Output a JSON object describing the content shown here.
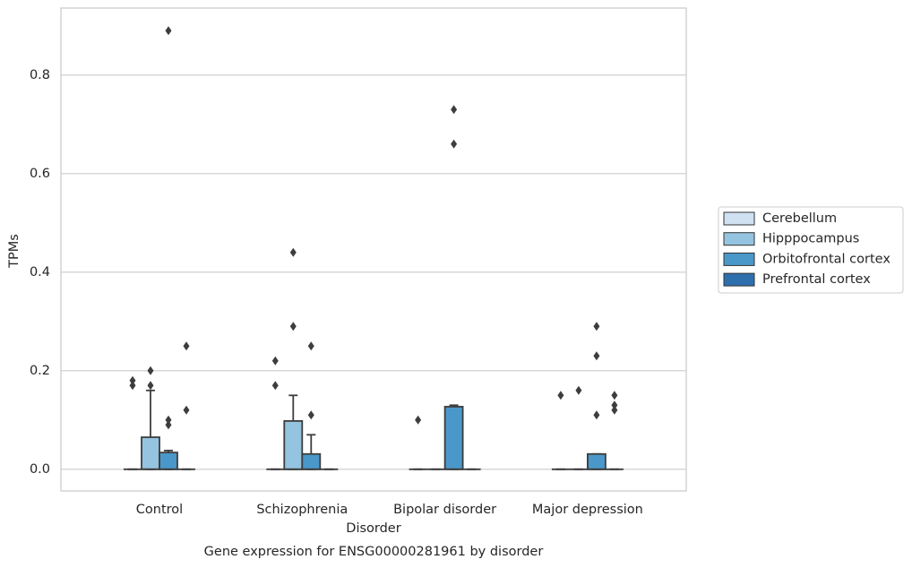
{
  "chart_data": {
    "type": "box",
    "title": "Gene expression for ENSG00000281961 by disorder",
    "xlabel": "Disorder",
    "ylabel": "TPMs",
    "categories": [
      "Control",
      "Schizophrenia",
      "Bipolar disorder",
      "Major depression"
    ],
    "ylim": [
      -0.044,
      0.936
    ],
    "yticks": [
      {
        "value": 0,
        "label": "0.0"
      },
      0.2,
      0.4,
      0.6,
      0.8
    ],
    "grid": true,
    "legend": "right",
    "series": [
      {
        "name": "Cerebellum",
        "color": "#d0e1f2",
        "boxes": [
          {
            "whislo": 0,
            "q1": 0,
            "med": 0,
            "q3": 0,
            "whishi": 0,
            "fliers": [
              0.18,
              0.17
            ]
          },
          {
            "whislo": 0,
            "q1": 0,
            "med": 0,
            "q3": 0,
            "whishi": 0,
            "fliers": [
              0.22,
              0.17
            ]
          },
          {
            "whislo": 0,
            "q1": 0,
            "med": 0,
            "q3": 0,
            "whishi": 0,
            "fliers": [
              0.1
            ]
          },
          {
            "whislo": 0,
            "q1": 0,
            "med": 0,
            "q3": 0,
            "whishi": 0,
            "fliers": [
              0.15
            ]
          }
        ]
      },
      {
        "name": "Hipppocampus",
        "color": "#94c4df",
        "boxes": [
          {
            "whislo": 0,
            "q1": 0,
            "med": 0,
            "q3": 0.065,
            "whishi": 0.16,
            "fliers": [
              0.2,
              0.17
            ]
          },
          {
            "whislo": 0,
            "q1": 0,
            "med": 0,
            "q3": 0.098,
            "whishi": 0.15,
            "fliers": [
              0.44,
              0.29
            ]
          },
          {
            "whislo": 0,
            "q1": 0,
            "med": 0,
            "q3": 0,
            "whishi": 0,
            "fliers": []
          },
          {
            "whislo": 0,
            "q1": 0,
            "med": 0,
            "q3": 0,
            "whishi": 0,
            "fliers": [
              0.16
            ]
          }
        ]
      },
      {
        "name": "Orbitofrontal cortex",
        "color": "#4a98c9",
        "boxes": [
          {
            "whislo": 0,
            "q1": 0,
            "med": 0,
            "q3": 0.034,
            "whishi": 0.038,
            "fliers": [
              0.89,
              0.1,
              0.09
            ]
          },
          {
            "whislo": 0,
            "q1": 0,
            "med": 0,
            "q3": 0.031,
            "whishi": 0.07,
            "fliers": [
              0.25,
              0.11
            ]
          },
          {
            "whislo": 0,
            "q1": 0,
            "med": 0,
            "q3": 0.127,
            "whishi": 0.13,
            "fliers": [
              0.73,
              0.66
            ]
          },
          {
            "whislo": 0,
            "q1": 0,
            "med": 0,
            "q3": 0.031,
            "whishi": 0.031,
            "fliers": [
              0.29,
              0.23,
              0.11
            ]
          }
        ]
      },
      {
        "name": "Prefrontal cortex",
        "color": "#2e6fad",
        "boxes": [
          {
            "whislo": 0,
            "q1": 0,
            "med": 0,
            "q3": 0,
            "whishi": 0,
            "fliers": [
              0.25,
              0.12
            ]
          },
          {
            "whislo": 0,
            "q1": 0,
            "med": 0,
            "q3": 0,
            "whishi": 0,
            "fliers": []
          },
          {
            "whislo": 0,
            "q1": 0,
            "med": 0,
            "q3": 0,
            "whishi": 0,
            "fliers": []
          },
          {
            "whislo": 0,
            "q1": 0,
            "med": 0,
            "q3": 0,
            "whishi": 0,
            "fliers": [
              0.15,
              0.13,
              0.12
            ]
          }
        ]
      }
    ]
  }
}
